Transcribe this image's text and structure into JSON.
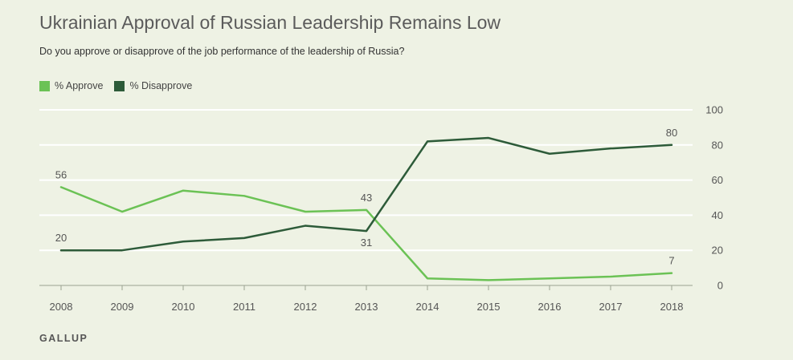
{
  "title": "Ukrainian Approval of Russian Leadership Remains Low",
  "subtitle": "Do you approve or disapprove of the job performance of the leadership of Russia?",
  "source": "GALLUP",
  "colors": {
    "approve": "#6bc255",
    "disapprove": "#2d5b39",
    "grid": "#ffffff",
    "background": "#eef2e4"
  },
  "chart_data": {
    "type": "line",
    "x": [
      "2008",
      "2009",
      "2010",
      "2011",
      "2012",
      "2013",
      "2014",
      "2015",
      "2016",
      "2017",
      "2018"
    ],
    "ylim": [
      0,
      100
    ],
    "yticks": [
      "0",
      "20",
      "40",
      "60",
      "80",
      "100"
    ],
    "grid": true,
    "legend_position": "top-left",
    "series": [
      {
        "name": "% Approve",
        "color": "#6bc255",
        "values": [
          56,
          42,
          54,
          51,
          42,
          43,
          4,
          3,
          4,
          5,
          7
        ],
        "labels": [
          {
            "index": 0,
            "text": "56",
            "position": "above"
          },
          {
            "index": 5,
            "text": "43",
            "position": "above"
          },
          {
            "index": 10,
            "text": "7",
            "position": "above"
          }
        ]
      },
      {
        "name": "% Disapprove",
        "color": "#2d5b39",
        "values": [
          20,
          20,
          25,
          27,
          34,
          31,
          82,
          84,
          75,
          78,
          80
        ],
        "labels": [
          {
            "index": 0,
            "text": "20",
            "position": "above"
          },
          {
            "index": 5,
            "text": "31",
            "position": "below"
          },
          {
            "index": 10,
            "text": "80",
            "position": "above"
          }
        ]
      }
    ]
  }
}
